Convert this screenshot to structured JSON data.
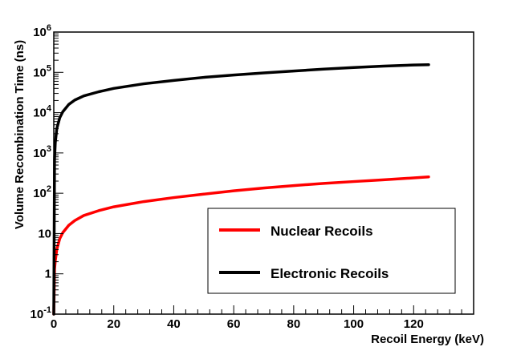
{
  "chart_data": {
    "type": "line",
    "title": "",
    "xlabel": "Recoil Energy (keV)",
    "ylabel": "Volume Recombination Time (ns)",
    "xlim": [
      0,
      140
    ],
    "ylim": [
      0.1,
      1000000
    ],
    "yscale": "log",
    "grid": false,
    "legend_position": "bottom-right",
    "x_ticks": [
      "0",
      "20",
      "40",
      "60",
      "80",
      "100",
      "120"
    ],
    "y_ticks": [
      {
        "base": "10",
        "exp": "-1"
      },
      {
        "base": "1",
        "exp": ""
      },
      {
        "base": "10",
        "exp": ""
      },
      {
        "base": "10",
        "exp": "2"
      },
      {
        "base": "10",
        "exp": "3"
      },
      {
        "base": "10",
        "exp": "4"
      },
      {
        "base": "10",
        "exp": "5"
      },
      {
        "base": "10",
        "exp": "6"
      }
    ],
    "series": [
      {
        "name": "Nuclear Recoils",
        "color": "#ff0000",
        "x": [
          0,
          0.25,
          0.5,
          1,
          2,
          3,
          5,
          7,
          10,
          15,
          20,
          30,
          40,
          50,
          60,
          70,
          80,
          90,
          100,
          110,
          120,
          125
        ],
        "y": [
          0.1,
          1.3,
          2.1,
          4,
          7.5,
          10.5,
          16,
          21,
          28,
          37,
          46,
          62,
          78,
          95,
          115,
          135,
          155,
          175,
          195,
          215,
          240,
          255
        ]
      },
      {
        "name": "Electronic Recoils",
        "color": "#000000",
        "x": [
          0,
          0.25,
          0.5,
          1,
          2,
          3,
          5,
          7,
          10,
          15,
          20,
          30,
          40,
          50,
          60,
          70,
          80,
          90,
          100,
          110,
          120,
          125
        ],
        "y": [
          0.1,
          700,
          1800,
          4000,
          7500,
          10500,
          16000,
          20500,
          26000,
          33000,
          40000,
          52000,
          63000,
          75000,
          86000,
          97000,
          108000,
          120000,
          132000,
          143000,
          152000,
          155000
        ]
      }
    ]
  }
}
